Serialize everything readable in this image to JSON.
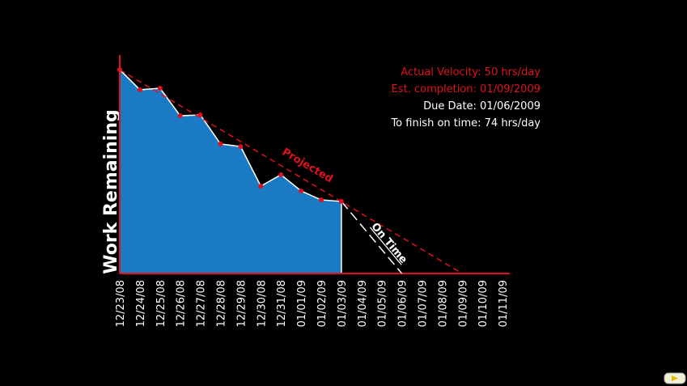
{
  "chart_data": {
    "type": "area",
    "ylabel": "Work Remaining",
    "categories": [
      "12/23/08",
      "12/24/08",
      "12/25/08",
      "12/26/08",
      "12/27/08",
      "12/28/08",
      "12/29/08",
      "12/30/08",
      "12/31/08",
      "01/01/09",
      "01/02/09",
      "01/03/09",
      "01/04/09",
      "01/05/09",
      "01/06/09",
      "01/07/09",
      "01/08/09",
      "01/09/09",
      "01/10/09",
      "01/11/09"
    ],
    "ylim": [
      0,
      100
    ],
    "series": [
      {
        "name": "Work Remaining",
        "color": "#1a7bc4",
        "values": [
          93.3,
          84.1,
          84.8,
          72.2,
          72.6,
          59.3,
          58.1,
          40,
          45.2,
          37.8,
          33.7,
          33,
          null,
          null,
          null,
          null,
          null,
          null,
          null,
          null
        ]
      },
      {
        "name": "Projected",
        "color": "#e0101e",
        "values": [
          93.3,
          87.8,
          82.3,
          76.8,
          71.4,
          65.9,
          60.4,
          54.9,
          49.4,
          43.9,
          38.4,
          32.9,
          27.4,
          21.9,
          16.5,
          11,
          5.5,
          0,
          null,
          null
        ]
      },
      {
        "name": "On Time",
        "color": "#ffffff",
        "values": [
          null,
          null,
          null,
          null,
          null,
          null,
          null,
          null,
          null,
          null,
          null,
          33,
          22,
          11,
          0,
          null,
          null,
          null,
          null,
          null
        ]
      }
    ],
    "annotations": [
      {
        "text": "Actual Velocity: 50 hrs/day",
        "color": "#e0101e"
      },
      {
        "text": "Est. completion: 01/09/2009",
        "color": "#e0101e"
      },
      {
        "text": "Due Date: 01/06/2009",
        "color": "#ffffff"
      },
      {
        "text": "To finish on time: 74 hrs/day",
        "color": "#ffffff"
      }
    ]
  }
}
